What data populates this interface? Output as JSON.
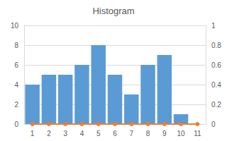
{
  "chart_data": {
    "type": "bar",
    "title": "Histogram",
    "categories": [
      "1",
      "2",
      "3",
      "4",
      "5",
      "6",
      "7",
      "8",
      "9",
      "10",
      "11"
    ],
    "series": [
      {
        "type": "bar",
        "color": "#5B9BD5",
        "values": [
          4,
          5,
          5,
          6,
          8,
          5,
          3,
          6,
          7,
          1,
          null
        ]
      },
      {
        "type": "line",
        "axis": "y2",
        "color": "#ED7D31",
        "marker": "circle",
        "values": [
          0,
          0,
          0,
          0,
          0,
          0,
          0,
          0,
          0,
          0,
          0
        ]
      }
    ],
    "ylim": [
      0,
      10
    ],
    "yticks": [
      0,
      2,
      4,
      6,
      8,
      10
    ],
    "y2lim": [
      0,
      1
    ],
    "y2ticks": [
      0,
      0.2,
      0.4,
      0.6,
      0.8,
      1
    ],
    "grid": true
  }
}
